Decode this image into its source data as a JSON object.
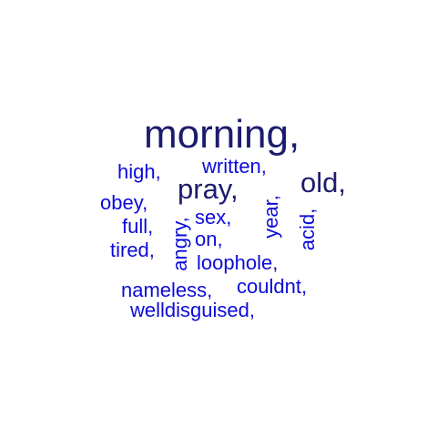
{
  "words": {
    "morning": "morning,",
    "old": "old,",
    "pray": "pray,",
    "written": "written,",
    "high": "high,",
    "obey": "obey,",
    "full": "full,",
    "tired": "tired,",
    "sex": "sex,",
    "on": "on,",
    "loophole": "loophole,",
    "nameless": "nameless,",
    "couldnt": "couldnt,",
    "welldisguised": "welldisguised,",
    "angry": "angry,",
    "year": "year,",
    "acid": "acid,"
  },
  "colors": {
    "dark": "#1c1c6e",
    "blue": "#0b0bd9",
    "background": "#ffffff"
  }
}
